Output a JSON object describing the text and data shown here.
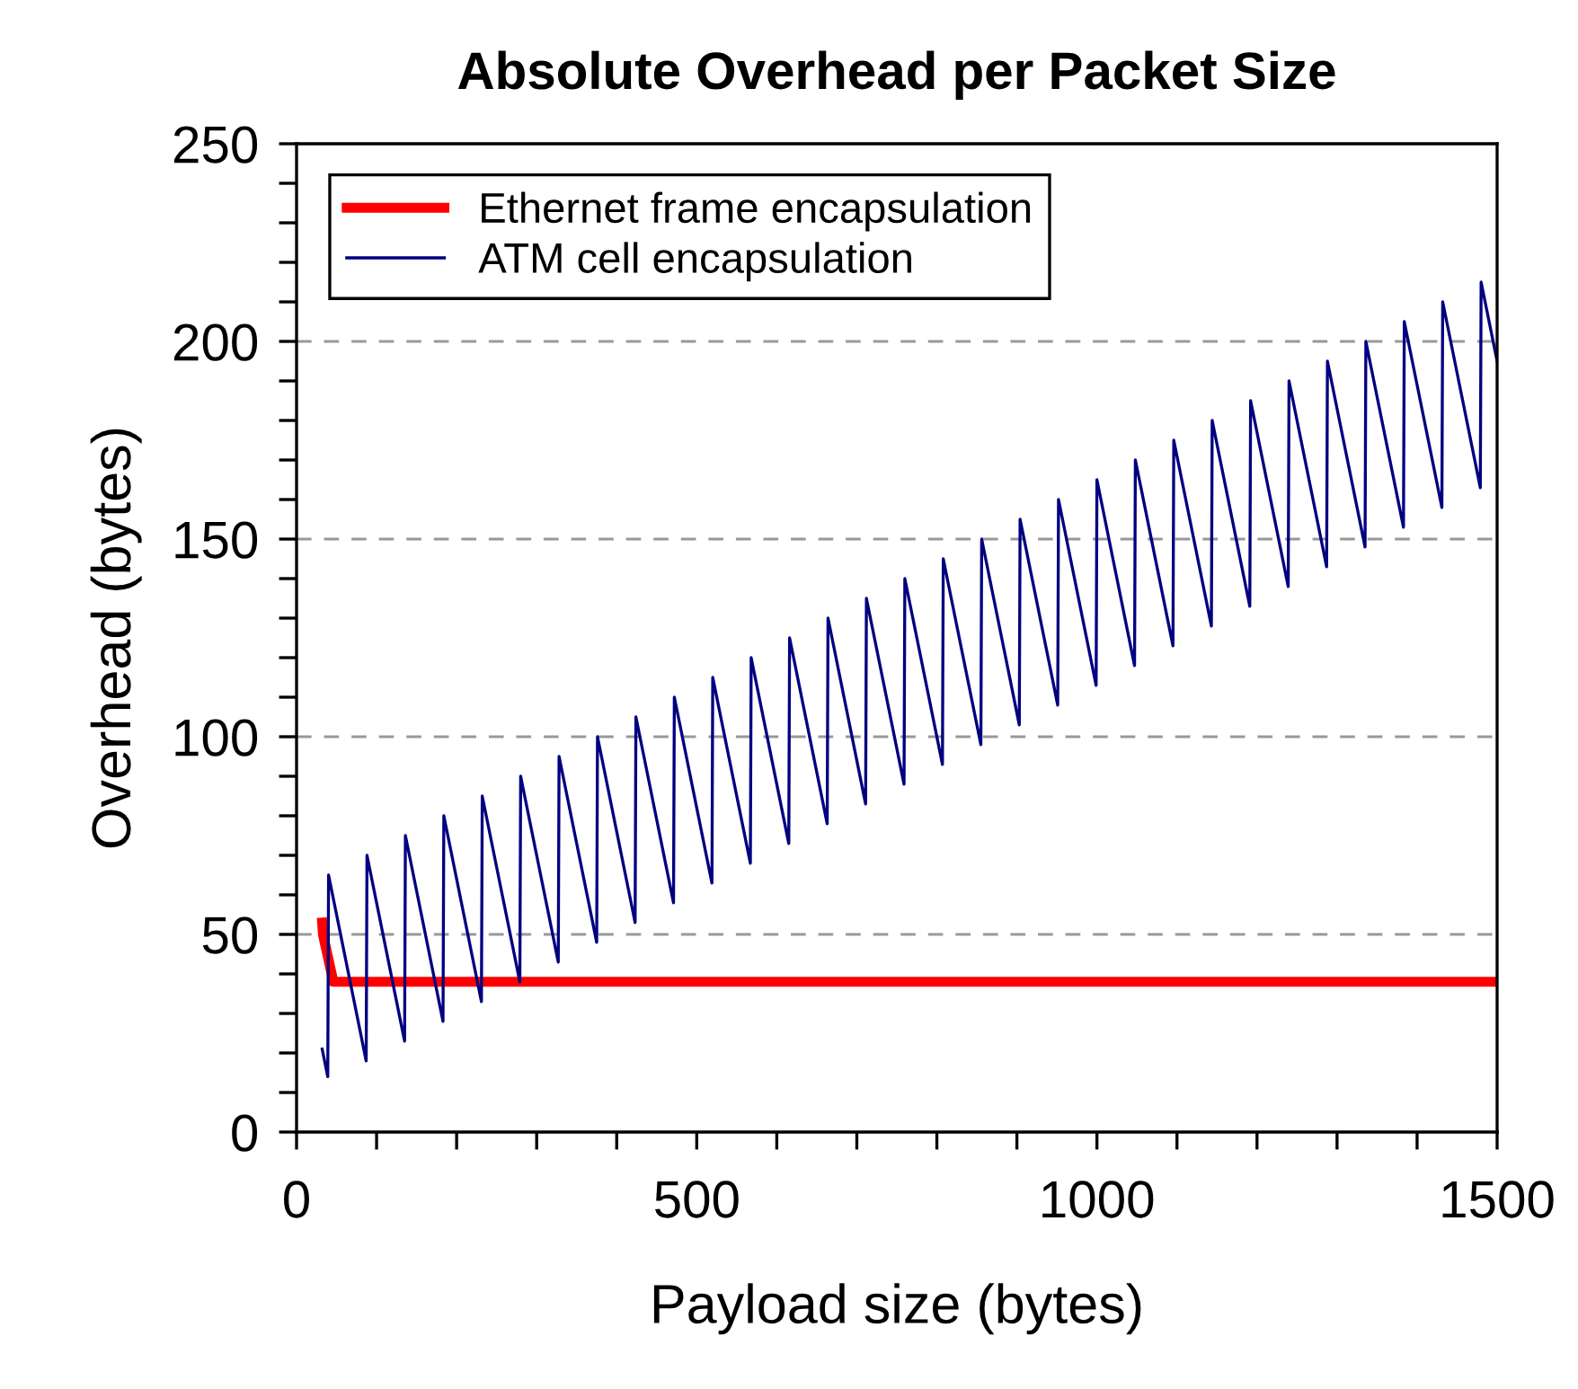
{
  "chart_data": {
    "type": "line",
    "title": "Absolute Overhead per Packet Size",
    "xlabel": "Payload size (bytes)",
    "ylabel": "Overhead (bytes)",
    "xlim": [
      0,
      1500
    ],
    "ylim": [
      0,
      250
    ],
    "xticks": [
      0,
      {
        "value": 100,
        "label": null
      },
      {
        "value": 200,
        "label": null
      },
      {
        "value": 300,
        "label": null
      },
      {
        "value": 400,
        "label": null
      },
      500,
      {
        "value": 600,
        "label": null
      },
      {
        "value": 700,
        "label": null
      },
      {
        "value": 800,
        "label": null
      },
      {
        "value": 900,
        "label": null
      },
      1000,
      {
        "value": 1100,
        "label": null
      },
      {
        "value": 1200,
        "label": null
      },
      {
        "value": 1300,
        "label": null
      },
      {
        "value": 1400,
        "label": null
      },
      1500
    ],
    "yticks": [
      0,
      {
        "value": 10,
        "label": null
      },
      {
        "value": 20,
        "label": null
      },
      {
        "value": 30,
        "label": null
      },
      {
        "value": 40,
        "label": null
      },
      50,
      {
        "value": 60,
        "label": null
      },
      {
        "value": 70,
        "label": null
      },
      {
        "value": 80,
        "label": null
      },
      {
        "value": 90,
        "label": null
      },
      100,
      {
        "value": 110,
        "label": null
      },
      {
        "value": 120,
        "label": null
      },
      {
        "value": 130,
        "label": null
      },
      {
        "value": 140,
        "label": null
      },
      150,
      {
        "value": 160,
        "label": null
      },
      {
        "value": 170,
        "label": null
      },
      {
        "value": 180,
        "label": null
      },
      {
        "value": 190,
        "label": null
      },
      200,
      {
        "value": 210,
        "label": null
      },
      {
        "value": 220,
        "label": null
      },
      {
        "value": 230,
        "label": null
      },
      {
        "value": 240,
        "label": null
      },
      250
    ],
    "grid": "y",
    "legend": "top left",
    "marker": "none",
    "line_style": "solid",
    "series": [
      {
        "name": "Ethernet frame encapsulation",
        "color": "#ff0000",
        "x": [
          32,
          33,
          46,
          1500
        ],
        "values": [
          53,
          50,
          38,
          38
        ]
      },
      {
        "name": "ATM cell encapsulation",
        "color": "#000080",
        "x": [
          32,
          39,
          40,
          87,
          88,
          135,
          136,
          183,
          184,
          231,
          232,
          279,
          280,
          327,
          328,
          375,
          376,
          423,
          424,
          471,
          472,
          519,
          520,
          567,
          568,
          615,
          616,
          663,
          664,
          711,
          712,
          759,
          760,
          807,
          808,
          855,
          856,
          903,
          904,
          951,
          952,
          999,
          1000,
          1047,
          1048,
          1095,
          1096,
          1143,
          1144,
          1191,
          1192,
          1239,
          1240,
          1287,
          1288,
          1335,
          1336,
          1383,
          1384,
          1431,
          1432,
          1479,
          1480,
          1500
        ],
        "values": [
          21,
          14,
          65,
          18,
          70,
          23,
          75,
          28,
          80,
          33,
          85,
          38,
          90,
          43,
          95,
          48,
          100,
          53,
          105,
          58,
          110,
          63,
          115,
          68,
          120,
          73,
          125,
          78,
          130,
          83,
          135,
          88,
          140,
          93,
          145,
          98,
          150,
          103,
          155,
          108,
          160,
          113,
          165,
          118,
          170,
          123,
          175,
          128,
          180,
          133,
          185,
          138,
          190,
          143,
          195,
          148,
          200,
          153,
          205,
          158,
          210,
          163,
          215,
          195
        ]
      }
    ]
  }
}
